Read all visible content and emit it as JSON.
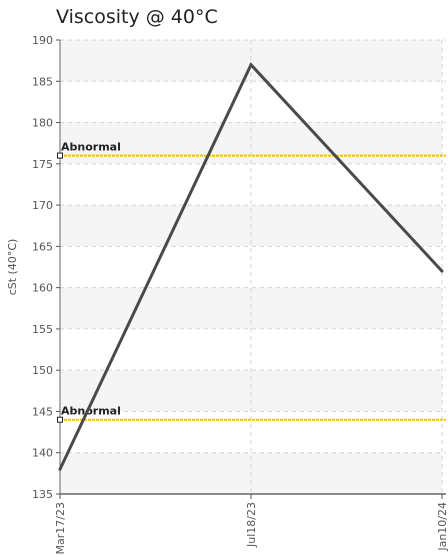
{
  "chart_data": {
    "type": "line",
    "title": "Viscosity @ 40°C",
    "xlabel": "",
    "ylabel": "cSt (40°C)",
    "categories": [
      "Mar17/23",
      "Jul18/23",
      "Jan10/24"
    ],
    "series": [
      {
        "values": [
          138,
          187,
          162
        ],
        "color": "#4a4a4a"
      }
    ],
    "ylim": [
      135,
      190
    ],
    "yticks": [
      135,
      140,
      145,
      150,
      155,
      160,
      165,
      170,
      175,
      180,
      185,
      190
    ],
    "grid": true,
    "reference_lines": [
      {
        "label": "Abnormal",
        "value": 176,
        "color": "#f2c200"
      },
      {
        "label": "Abnormal",
        "value": 144,
        "color": "#f2c200"
      }
    ]
  }
}
